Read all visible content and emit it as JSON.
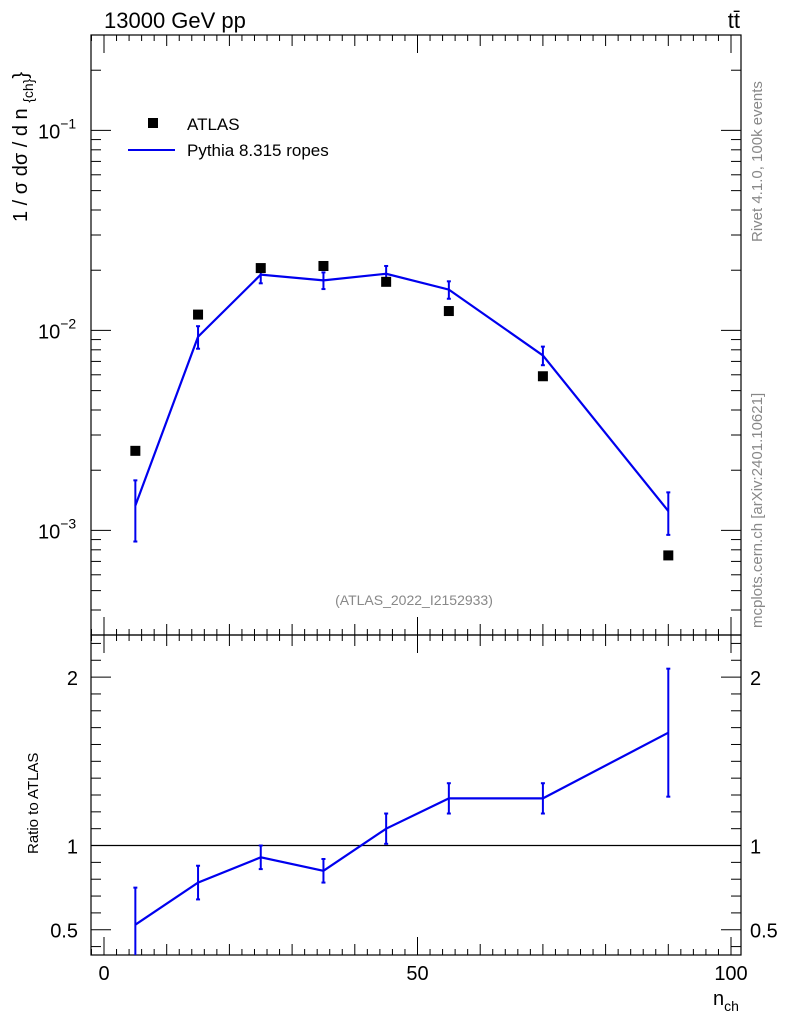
{
  "header": {
    "energy_label": "13000 GeV pp",
    "process_label": "tt̄"
  },
  "side_labels": {
    "rivet": "Rivet 4.1.0,  100k events",
    "mcplots": "mcplots.cern.ch [arXiv:2401.10621]"
  },
  "analysis_tag": "(ATLAS_2022_I2152933)",
  "colors": {
    "data": "#000000",
    "mc": "#0000ee",
    "gray_text": "#888888"
  },
  "chart_data": [
    {
      "type": "scatter",
      "panel": "main",
      "ylabel": "1 / σ dσ / d n_{ch}",
      "yscale": "log",
      "xlim": [
        0,
        100
      ],
      "ylim": [
        0.0003,
        0.3
      ],
      "y_tick_labels": [
        "10^{-3}",
        "10^{-2}",
        "10^{-1}"
      ],
      "legend": {
        "placement": "top-left",
        "entries": [
          {
            "label": "ATLAS",
            "marker": "square"
          },
          {
            "label": "Pythia 8.315 ropes",
            "marker": "line"
          }
        ]
      },
      "series": [
        {
          "name": "ATLAS",
          "x": [
            5,
            15,
            25,
            35,
            45,
            55,
            70,
            90
          ],
          "y": [
            0.0025,
            0.012,
            0.0205,
            0.021,
            0.0175,
            0.0125,
            0.0059,
            0.00075
          ]
        },
        {
          "name": "Pythia 8.315 ropes",
          "x": [
            5,
            15,
            25,
            35,
            45,
            55,
            70,
            90
          ],
          "y": [
            0.00133,
            0.0093,
            0.019,
            0.0178,
            0.0192,
            0.016,
            0.0075,
            0.00125
          ],
          "y_err": [
            0.00045,
            0.0012,
            0.0018,
            0.0017,
            0.0018,
            0.0016,
            0.0008,
            0.0003
          ]
        }
      ]
    },
    {
      "type": "line",
      "panel": "ratio",
      "ylabel": "Ratio to ATLAS",
      "xlabel": "n_{ch}",
      "xlim": [
        0,
        100
      ],
      "x_ticks": [
        0,
        50,
        100
      ],
      "ylim": [
        0.35,
        2.25
      ],
      "y_ticks": [
        0.5,
        1,
        2
      ],
      "y_tick_labels": [
        "0.5",
        "1",
        "2"
      ],
      "reference_line": 1,
      "series": [
        {
          "name": "Pythia 8.315 ropes",
          "x": [
            5,
            15,
            25,
            35,
            45,
            55,
            70,
            90
          ],
          "y": [
            0.53,
            0.78,
            0.93,
            0.85,
            1.1,
            1.28,
            1.28,
            1.67
          ],
          "y_err": [
            0.22,
            0.1,
            0.07,
            0.07,
            0.09,
            0.09,
            0.09,
            0.38
          ]
        }
      ]
    }
  ]
}
